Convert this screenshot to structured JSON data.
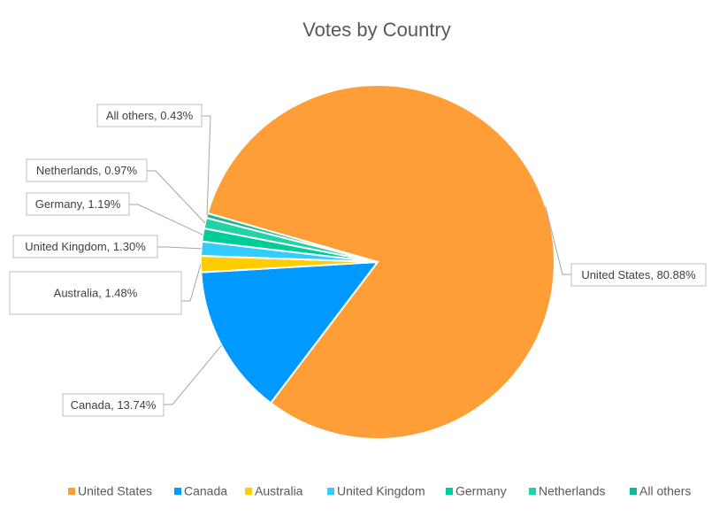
{
  "chart_data": {
    "type": "pie",
    "title": "Votes by Country",
    "categories": [
      "United States",
      "Canada",
      "Australia",
      "United Kingdom",
      "Germany",
      "Netherlands",
      "All others"
    ],
    "values": [
      80.88,
      13.74,
      1.48,
      1.3,
      1.19,
      0.97,
      0.43
    ],
    "value_labels": [
      "United States, 80.88%",
      "Canada, 13.74%",
      "Australia, 1.48%",
      "United Kingdom, 1.30%",
      "Germany, 1.19%",
      "Netherlands, 0.97%",
      "All others, 0.43%"
    ],
    "colors": [
      "#ff9d36",
      "#0099ff",
      "#ffcc00",
      "#33ccff",
      "#00cc99",
      "#22d3a6",
      "#14b896"
    ],
    "legend": "bottom"
  }
}
